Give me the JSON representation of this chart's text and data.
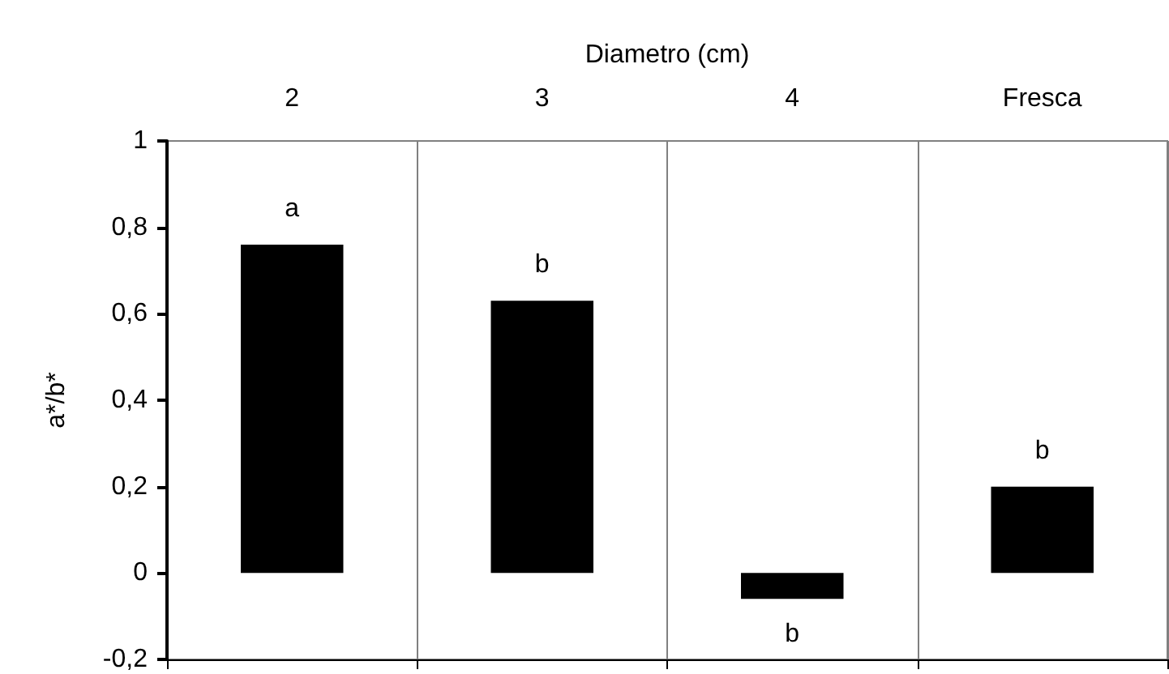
{
  "chart_data": {
    "type": "bar",
    "xlabel": "Diametro (cm)",
    "ylabel": "a*/b*",
    "categories": [
      "2",
      "3",
      "4",
      "Fresca"
    ],
    "values": [
      0.76,
      0.63,
      -0.06,
      0.2
    ],
    "color": "#000000",
    "ylim": [
      -0.2,
      1
    ],
    "yticks": [
      {
        "value": -0.2,
        "label": "-0,2"
      },
      0,
      {
        "value": 0.2,
        "label": "0,2"
      },
      {
        "value": 0.4,
        "label": "0,4"
      },
      {
        "value": 0.6,
        "label": "0,6"
      },
      {
        "value": 0.8,
        "label": "0,8"
      },
      1
    ],
    "grid": "x",
    "annotations": [
      "a",
      "b",
      "b",
      "b"
    ]
  }
}
